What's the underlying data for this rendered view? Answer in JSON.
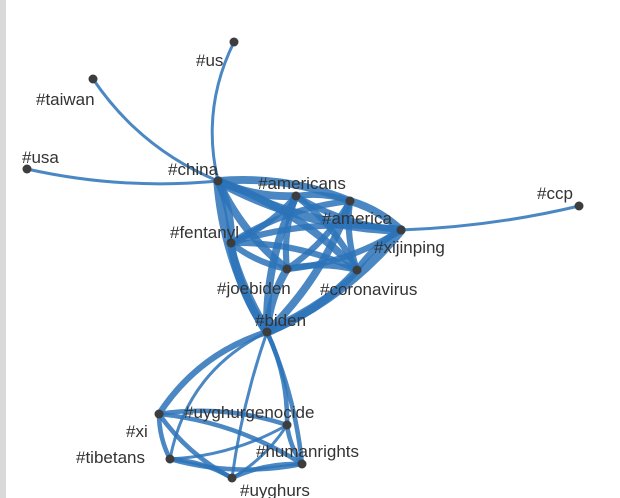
{
  "colors": {
    "edge": "#2b73b8",
    "node": "#3d3d3d",
    "label": "#333333",
    "background": "#ffffff"
  },
  "nodes": [
    {
      "id": "us",
      "label": "#us"
    },
    {
      "id": "taiwan",
      "label": "#taiwan"
    },
    {
      "id": "usa",
      "label": "#usa"
    },
    {
      "id": "china",
      "label": "#china"
    },
    {
      "id": "americans",
      "label": "#americans"
    },
    {
      "id": "america",
      "label": "#america"
    },
    {
      "id": "xijinping",
      "label": "#xijinping"
    },
    {
      "id": "ccp",
      "label": "#ccp"
    },
    {
      "id": "fentanyl",
      "label": "#fentanyl"
    },
    {
      "id": "joebiden",
      "label": "#joebiden"
    },
    {
      "id": "coronavirus",
      "label": "#coronavirus"
    },
    {
      "id": "biden",
      "label": "#biden"
    },
    {
      "id": "uyghurgenocide",
      "label": "#uyghurgenocide"
    },
    {
      "id": "xi",
      "label": "#xi"
    },
    {
      "id": "tibetans",
      "label": "#tibetans"
    },
    {
      "id": "humanrights",
      "label": "#humanrights"
    },
    {
      "id": "uyghurs",
      "label": "#uyghurs"
    }
  ],
  "edges": [
    {
      "source": "china",
      "target": "us",
      "weight": 1
    },
    {
      "source": "china",
      "target": "taiwan",
      "weight": 1
    },
    {
      "source": "china",
      "target": "usa",
      "weight": 1
    },
    {
      "source": "xijinping",
      "target": "ccp",
      "weight": 1
    },
    {
      "source": "china",
      "target": "americans",
      "weight": 4
    },
    {
      "source": "china",
      "target": "america",
      "weight": 4
    },
    {
      "source": "china",
      "target": "xijinping",
      "weight": 5
    },
    {
      "source": "china",
      "target": "fentanyl",
      "weight": 4
    },
    {
      "source": "china",
      "target": "joebiden",
      "weight": 4
    },
    {
      "source": "china",
      "target": "coronavirus",
      "weight": 4
    },
    {
      "source": "china",
      "target": "biden",
      "weight": 5
    },
    {
      "source": "americans",
      "target": "america",
      "weight": 3
    },
    {
      "source": "americans",
      "target": "xijinping",
      "weight": 3
    },
    {
      "source": "americans",
      "target": "fentanyl",
      "weight": 3
    },
    {
      "source": "americans",
      "target": "joebiden",
      "weight": 3
    },
    {
      "source": "americans",
      "target": "coronavirus",
      "weight": 3
    },
    {
      "source": "americans",
      "target": "biden",
      "weight": 4
    },
    {
      "source": "america",
      "target": "xijinping",
      "weight": 4
    },
    {
      "source": "america",
      "target": "fentanyl",
      "weight": 3
    },
    {
      "source": "america",
      "target": "joebiden",
      "weight": 3
    },
    {
      "source": "america",
      "target": "coronavirus",
      "weight": 3
    },
    {
      "source": "america",
      "target": "biden",
      "weight": 4
    },
    {
      "source": "xijinping",
      "target": "fentanyl",
      "weight": 3
    },
    {
      "source": "xijinping",
      "target": "joebiden",
      "weight": 3
    },
    {
      "source": "xijinping",
      "target": "coronavirus",
      "weight": 3
    },
    {
      "source": "xijinping",
      "target": "biden",
      "weight": 5
    },
    {
      "source": "fentanyl",
      "target": "joebiden",
      "weight": 3
    },
    {
      "source": "fentanyl",
      "target": "coronavirus",
      "weight": 3
    },
    {
      "source": "fentanyl",
      "target": "biden",
      "weight": 4
    },
    {
      "source": "joebiden",
      "target": "coronavirus",
      "weight": 3
    },
    {
      "source": "joebiden",
      "target": "biden",
      "weight": 4
    },
    {
      "source": "coronavirus",
      "target": "biden",
      "weight": 4
    },
    {
      "source": "biden",
      "target": "xi",
      "weight": 3
    },
    {
      "source": "biden",
      "target": "uyghurgenocide",
      "weight": 2
    },
    {
      "source": "biden",
      "target": "tibetans",
      "weight": 1
    },
    {
      "source": "biden",
      "target": "humanrights",
      "weight": 2
    },
    {
      "source": "biden",
      "target": "uyghurs",
      "weight": 1
    },
    {
      "source": "xi",
      "target": "uyghurgenocide",
      "weight": 2
    },
    {
      "source": "xi",
      "target": "tibetans",
      "weight": 2
    },
    {
      "source": "xi",
      "target": "humanrights",
      "weight": 2
    },
    {
      "source": "xi",
      "target": "uyghurs",
      "weight": 2
    },
    {
      "source": "uyghurgenocide",
      "target": "tibetans",
      "weight": 1
    },
    {
      "source": "uyghurgenocide",
      "target": "humanrights",
      "weight": 2
    },
    {
      "source": "uyghurgenocide",
      "target": "uyghurs",
      "weight": 1
    },
    {
      "source": "tibetans",
      "target": "humanrights",
      "weight": 2
    },
    {
      "source": "tibetans",
      "target": "uyghurs",
      "weight": 2
    },
    {
      "source": "humanrights",
      "target": "uyghurs",
      "weight": 2
    }
  ]
}
